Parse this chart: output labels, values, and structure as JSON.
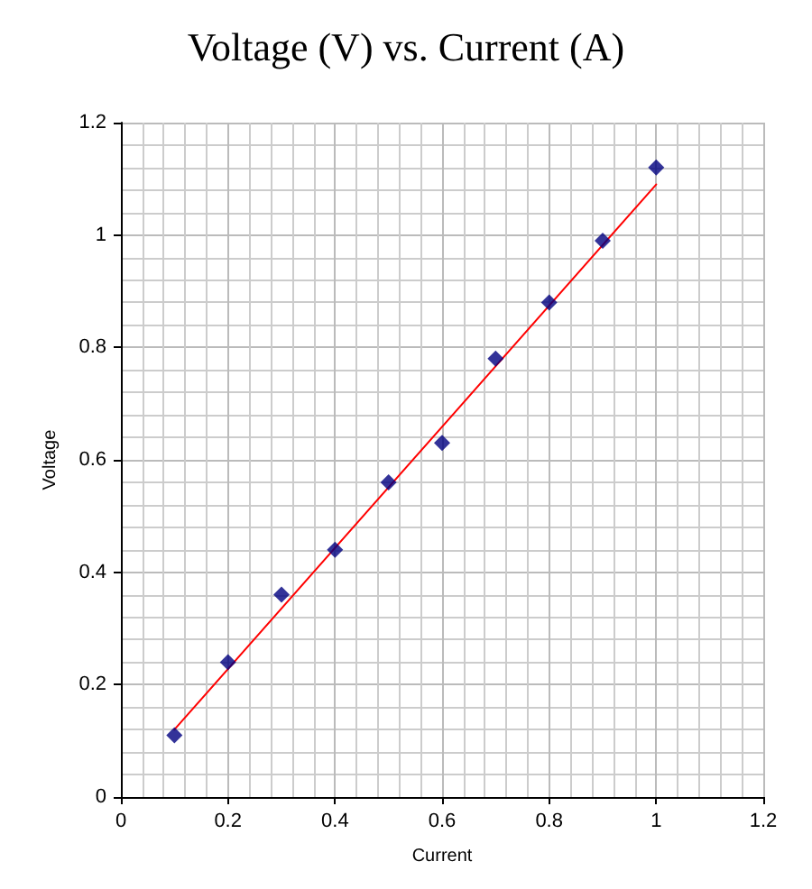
{
  "chart_data": {
    "type": "scatter",
    "title": "Voltage (V) vs. Current (A)",
    "xlabel": "Current",
    "ylabel": "Voltage",
    "x": [
      0.1,
      0.2,
      0.3,
      0.4,
      0.5,
      0.6,
      0.7,
      0.8,
      0.9,
      1.0
    ],
    "series": [
      {
        "color": "#000080",
        "marker": "diamond",
        "values": [
          0.11,
          0.24,
          0.36,
          0.44,
          0.56,
          0.63,
          0.78,
          0.88,
          0.99,
          1.12
        ]
      },
      {
        "type": "line",
        "color": "#ff0000",
        "x": [
          0.1,
          1.0
        ],
        "values": [
          0.12,
          1.09
        ],
        "marker": "none",
        "line_style": "solid"
      }
    ],
    "xlim": [
      0,
      1.2
    ],
    "xticks": [
      0,
      0.2,
      0.4,
      0.6,
      0.8,
      1,
      1.2
    ],
    "ylim": [
      0,
      1.2
    ],
    "yticks": [
      0,
      0.2,
      0.4,
      0.6,
      0.8,
      1,
      1.2
    ],
    "grid": true
  }
}
